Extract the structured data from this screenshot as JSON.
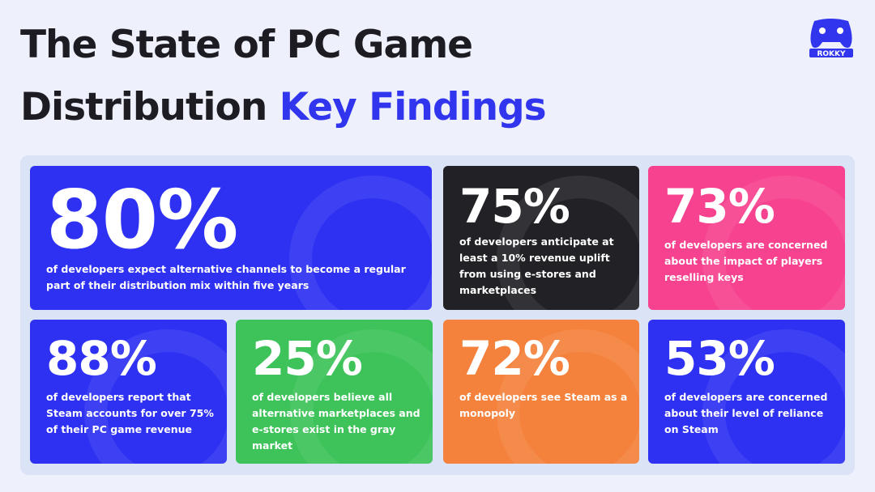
{
  "header": {
    "title_line1": "The State of PC Game",
    "title_line2": "Distribution",
    "title_highlight": "Key Findings",
    "logo": "ROKKY"
  },
  "cards": [
    {
      "stat": "80%",
      "text": "of developers expect alternative channels to become a regular part of their distribution mix within five years"
    },
    {
      "stat": "75%",
      "text": "of developers anticipate at least a 10% revenue uplift from using e-stores and marketplaces"
    },
    {
      "stat": "73%",
      "text": "of developers are concerned about the impact of players reselling keys"
    },
    {
      "stat": "88%",
      "text": "of developers report that Steam accounts for over 75% of their PC game revenue"
    },
    {
      "stat": "25%",
      "text": "of developers believe all alternative marketplaces and e-stores exist in the gray market"
    },
    {
      "stat": "72%",
      "text": "of developers see Steam as a monopoly"
    },
    {
      "stat": "53%",
      "text": "of developers are concerned about their level of reliance on Steam"
    }
  ]
}
